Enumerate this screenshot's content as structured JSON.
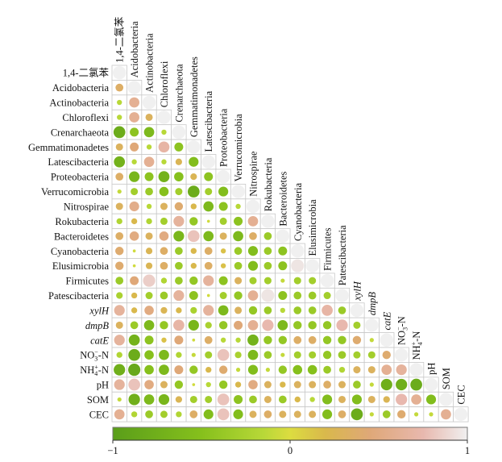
{
  "chart_data": {
    "type": "heatmap",
    "subtype": "lower-triangular correlation matrix (circle size and color encode r)",
    "title": "",
    "variables": [
      {
        "label": "1,4-二氯苯"
      },
      {
        "label": "Acidobacteria"
      },
      {
        "label": "Actinobacteria"
      },
      {
        "label": "Chloroflexi"
      },
      {
        "label": "Crenarchaeota"
      },
      {
        "label": "Gemmatimonadetes"
      },
      {
        "label": "Latescibacteria"
      },
      {
        "label": "Proteobacteria"
      },
      {
        "label": "Verrucomicrobia"
      },
      {
        "label": "Nitrospirae"
      },
      {
        "label": "Rokubacteria"
      },
      {
        "label": "Bacteroidetes"
      },
      {
        "label": "Cyanobacteria"
      },
      {
        "label": "Elusimicrobia"
      },
      {
        "label": "Firmicutes"
      },
      {
        "label": "Patescibacteria"
      },
      {
        "label": "xylH",
        "italic": true
      },
      {
        "label": "dmpB",
        "italic": true
      },
      {
        "label": "catE",
        "italic": true
      },
      {
        "label": "NO3-N",
        "base": "NO",
        "sub": "3",
        "sup": "−",
        "suffix": "-N"
      },
      {
        "label": "NH4+-N",
        "base": "NH",
        "sub": "4",
        "sup": "+",
        "suffix": "-N"
      },
      {
        "label": "pH"
      },
      {
        "label": "SOM"
      },
      {
        "label": "CEC"
      }
    ],
    "diagonal_value": 1,
    "lower_triangle": [
      [],
      [
        0.35
      ],
      [
        -0.15,
        0.6
      ],
      [
        -0.15,
        0.6,
        0.3
      ],
      [
        -0.8,
        -0.45,
        -0.6,
        -0.15
      ],
      [
        0.3,
        0.45,
        -0.15,
        0.7,
        -0.45
      ],
      [
        -0.7,
        -0.15,
        0.6,
        -0.15,
        0.25,
        -0.55
      ],
      [
        0.35,
        -0.65,
        -0.45,
        -0.7,
        -0.5,
        0.25,
        -0.45
      ],
      [
        -0.1,
        -0.3,
        -0.35,
        -0.5,
        -0.3,
        -0.8,
        -0.3,
        -0.55
      ],
      [
        0.3,
        0.55,
        -0.15,
        0.3,
        0.4,
        0.2,
        -0.6,
        -0.45,
        -0.15
      ],
      [
        -0.2,
        0.2,
        -0.2,
        -0.3,
        0.65,
        -0.4,
        -0.05,
        -0.3,
        -0.45,
        0.6
      ],
      [
        0.35,
        0.5,
        0.3,
        0.5,
        -0.65,
        0.8,
        -0.6,
        0.3,
        -0.6,
        0.35,
        -0.35
      ],
      [
        0.4,
        -0.05,
        0.25,
        0.35,
        -0.35,
        0.2,
        0.35,
        0.15,
        -0.35,
        -0.55,
        -0.35,
        -0.45
      ],
      [
        0.4,
        -0.05,
        0.25,
        0.35,
        -0.35,
        0.2,
        0.35,
        0.15,
        -0.35,
        -0.55,
        -0.35,
        -0.45,
        0.95
      ],
      [
        -0.35,
        0.45,
        0.85,
        -0.2,
        -0.35,
        -0.4,
        0.65,
        -0.45,
        0.3,
        -0.3,
        -0.3,
        -0.1,
        -0.3,
        -0.3
      ],
      [
        -0.25,
        0.2,
        -0.3,
        -0.35,
        0.65,
        -0.45,
        -0.05,
        -0.3,
        -0.4,
        0.6,
        0.95,
        -0.45,
        -0.35,
        -0.35,
        -0.3
      ],
      [
        0.65,
        0.2,
        0.5,
        0.25,
        0.2,
        -0.25,
        0.65,
        -0.6,
        0.3,
        -0.4,
        -0.35,
        -0.15,
        -0.35,
        -0.35,
        0.7,
        -0.35
      ],
      [
        0.3,
        -0.35,
        -0.6,
        -0.4,
        0.7,
        -0.65,
        -0.25,
        -0.4,
        0.45,
        0.6,
        0.75,
        -0.6,
        -0.4,
        -0.4,
        -0.4,
        0.75,
        -0.3
      ],
      [
        0.65,
        -0.7,
        -0.45,
        0.15,
        0.45,
        -0.05,
        0.35,
        -0.15,
        -0.15,
        -0.7,
        -0.4,
        -0.4,
        0.35,
        0.35,
        -0.4,
        -0.4,
        0.4,
        -0.1
      ],
      [
        -0.2,
        -0.8,
        -0.5,
        -0.6,
        -0.2,
        -0.1,
        -0.3,
        0.8,
        -0.25,
        -0.6,
        -0.35,
        -0.1,
        -0.3,
        -0.3,
        -0.4,
        -0.35,
        -0.3,
        -0.3,
        0.4
      ],
      [
        -0.75,
        -0.85,
        -0.5,
        -0.6,
        0.45,
        -0.4,
        0.2,
        0.4,
        -0.1,
        -0.55,
        -0.1,
        -0.4,
        -0.5,
        -0.5,
        -0.35,
        -0.2,
        0.3,
        0.3,
        0.6,
        0.65
      ],
      [
        0.65,
        0.8,
        0.5,
        0.3,
        -0.4,
        -0.05,
        -0.15,
        -0.4,
        0.2,
        0.5,
        0.3,
        0.2,
        0.3,
        0.3,
        0.35,
        0.3,
        -0.35,
        -0.1,
        -0.75,
        -0.75,
        -0.8
      ],
      [
        -0.1,
        -0.75,
        -0.6,
        -0.65,
        0.25,
        -0.3,
        -0.3,
        0.8,
        -0.45,
        -0.35,
        0.3,
        -0.35,
        0.2,
        -0.15,
        -0.55,
        0.3,
        -0.55,
        0.3,
        0.25,
        0.75,
        0.6,
        -0.55
      ],
      [
        0.6,
        -0.2,
        -0.35,
        -0.3,
        -0.2,
        0.35,
        -0.55,
        0.8,
        -0.55,
        0.3,
        0.35,
        0.3,
        0.3,
        0.3,
        -0.55,
        0.35,
        -0.8,
        -0.1,
        -0.35,
        0.4,
        -0.1,
        -0.1,
        0.6
      ]
    ],
    "colorbar": {
      "range": [
        -1,
        1
      ],
      "ticks": [
        -1,
        0,
        1
      ],
      "tick_labels": [
        "−1",
        "0",
        "1"
      ],
      "stops": [
        {
          "value": -1,
          "color": "#5a9e1a"
        },
        {
          "value": -0.5,
          "color": "#86c01c"
        },
        {
          "value": -0.15,
          "color": "#b8d838"
        },
        {
          "value": 0,
          "color": "#dcdc40"
        },
        {
          "value": 0.2,
          "color": "#d9b84c"
        },
        {
          "value": 0.45,
          "color": "#dfa878"
        },
        {
          "value": 0.75,
          "color": "#e8b8ae"
        },
        {
          "value": 1,
          "color": "#f0f0f0"
        }
      ],
      "placement": "bottom"
    },
    "grid": true,
    "legend": "colorbar at bottom"
  }
}
